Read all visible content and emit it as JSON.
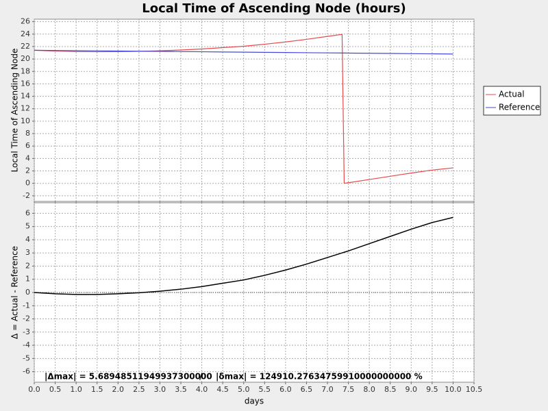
{
  "chart_data": {
    "type": "line",
    "title": "Local Time of Ascending Node (hours)",
    "xlabel": "days",
    "xlim": [
      0,
      10.5
    ],
    "xticks": [
      {
        "value": 0,
        "label": "0.0"
      },
      0.5,
      {
        "value": 1,
        "label": "1.0"
      },
      1.5,
      {
        "value": 2,
        "label": "2.0"
      },
      2.5,
      {
        "value": 3,
        "label": "3.0"
      },
      3.5,
      {
        "value": 4,
        "label": "4.0"
      },
      4.5,
      {
        "value": 5,
        "label": "5.0"
      },
      5.5,
      {
        "value": 6,
        "label": "6.0"
      },
      6.5,
      {
        "value": 7,
        "label": "7.0"
      },
      7.5,
      {
        "value": 8,
        "label": "8.0"
      },
      8.5,
      {
        "value": 9,
        "label": "9.0"
      },
      9.5,
      {
        "value": 10,
        "label": "10.0"
      },
      10.5
    ],
    "x": [
      0,
      0.5,
      1,
      1.5,
      2,
      2.5,
      3,
      3.5,
      4,
      4.5,
      5,
      5.5,
      6,
      6.5,
      7,
      7.35,
      7.4,
      7.5,
      8,
      8.5,
      9,
      9.5,
      10
    ],
    "grid": true,
    "legend": "right",
    "panels": [
      {
        "ylabel": "Local Time of Ascending Node",
        "ylim": [
          -2.9,
          26.4
        ],
        "yticks": [
          -2,
          0,
          2,
          4,
          6,
          8,
          10,
          12,
          14,
          16,
          18,
          20,
          22,
          24,
          26
        ],
        "series": [
          {
            "name": "Actual",
            "color": "#e8484a",
            "values": [
              21.4,
              21.27,
              21.19,
              21.16,
              21.18,
              21.23,
              21.32,
              21.44,
              21.61,
              21.83,
              22.05,
              22.37,
              22.74,
              23.16,
              23.63,
              23.96,
              0.01,
              0.1,
              0.62,
              1.14,
              1.66,
              2.13,
              2.49
            ]
          },
          {
            "name": "Reference",
            "color": "#4646d8",
            "values": [
              21.4,
              21.37,
              21.34,
              21.31,
              21.28,
              21.25,
              21.22,
              21.19,
              21.16,
              21.13,
              21.1,
              21.07,
              21.04,
              21.01,
              20.98,
              20.96,
              20.96,
              20.95,
              20.92,
              20.89,
              20.86,
              20.83,
              20.8
            ]
          }
        ]
      },
      {
        "ylabel": "Δ = Actual - Reference",
        "ylim": [
          -6.8,
          6.8
        ],
        "yticks": [
          -6,
          -5,
          -4,
          -3,
          -2,
          -1,
          0,
          1,
          2,
          3,
          4,
          5,
          6
        ],
        "series": [
          {
            "color": "#000000",
            "values": [
              0,
              -0.1,
              -0.15,
              -0.15,
              -0.1,
              -0.02,
              0.1,
              0.25,
              0.45,
              0.7,
              0.95,
              1.3,
              1.7,
              2.15,
              2.65,
              3.0,
              3.05,
              3.15,
              3.7,
              4.25,
              4.8,
              5.3,
              5.69
            ]
          }
        ],
        "annotations": [
          "|Δmax| = 5.68948511949937300000",
          "/",
          "|δmax| = 124910.27634759910000000000 %"
        ]
      }
    ]
  }
}
